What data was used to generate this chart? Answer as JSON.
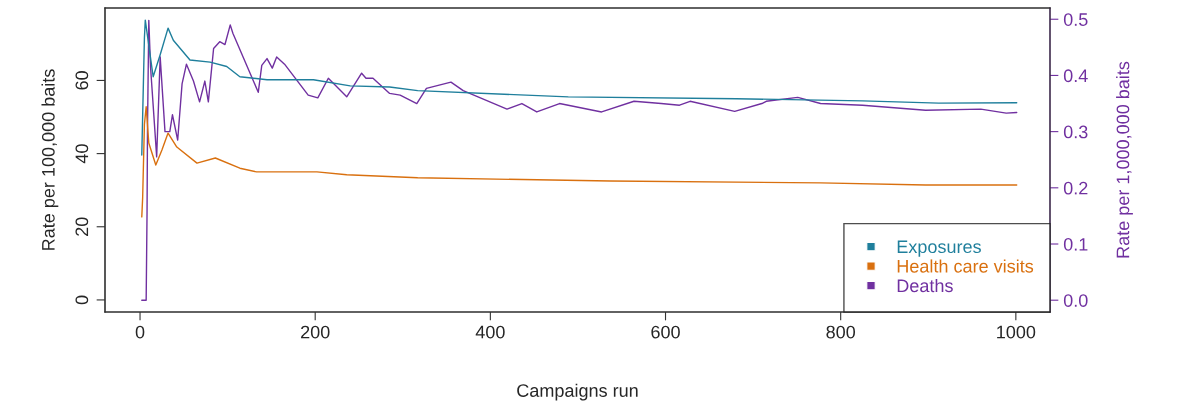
{
  "chart_data": {
    "type": "line",
    "xlabel": "Campaigns run",
    "ylabel": "Rate per 100,000 baits",
    "y2label": "Rate per 1,000,000 baits",
    "xlim": [
      -40,
      1039
    ],
    "xticks": [
      0,
      200,
      400,
      600,
      800,
      1000
    ],
    "ylim": [
      -3.3,
      79.8
    ],
    "yticks": [
      0,
      20,
      40,
      60
    ],
    "y2lim": [
      -0.021,
      0.52
    ],
    "y2ticks": [
      {
        "value": 0,
        "label": "0.0"
      },
      0.1,
      0.2,
      0.3,
      0.4,
      0.5
    ],
    "legend": "bottom right",
    "grid": false,
    "series": [
      {
        "name": "Exposures",
        "color": "#1f7f9c",
        "x": [
          2,
          4,
          5,
          6,
          15,
          23,
          32,
          38,
          57,
          80,
          99,
          114,
          145,
          198,
          240,
          285,
          317,
          489,
          681,
          825,
          912,
          1001
        ],
        "values": [
          39.6,
          61,
          71.6,
          76.5,
          61,
          67,
          74.3,
          71,
          65.6,
          65,
          63.8,
          61,
          60.2,
          60.2,
          58.5,
          58.2,
          57.2,
          55.5,
          55,
          54.4,
          53.8,
          53.9
        ]
      },
      {
        "name": "Health care visits",
        "color": "#d9700f",
        "x": [
          2,
          3,
          5,
          7,
          10,
          18,
          25,
          32,
          42,
          65,
          86,
          114,
          133,
          202,
          236,
          317,
          537,
          777,
          897,
          1001
        ],
        "values": [
          22.7,
          28,
          48,
          52.8,
          42.9,
          36.9,
          41,
          45.6,
          41.8,
          37.4,
          38.8,
          36,
          35,
          35,
          34.2,
          33.4,
          32.5,
          32,
          31.4,
          31.4
        ]
      },
      {
        "name": "Deaths",
        "color": "#7030a0",
        "axis": "y2",
        "x": [
          2,
          7,
          8,
          8.5,
          10,
          12,
          19,
          23,
          28.5,
          34,
          37,
          43,
          48,
          53,
          61,
          68,
          74,
          78,
          84,
          91,
          97,
          103,
          106,
          135,
          139,
          145,
          151,
          156,
          165,
          192,
          203,
          215,
          236,
          253,
          258,
          266,
          285,
          297,
          316,
          327,
          355,
          369,
          419,
          436,
          453,
          479,
          527,
          564,
          595,
          616,
          628,
          679,
          710,
          715,
          751,
          777,
          825,
          897,
          960,
          989,
          1001
        ],
        "values": [
          0,
          0,
          0.155,
          0.3,
          0.498,
          0.415,
          0.255,
          0.433,
          0.3,
          0.3,
          0.33,
          0.285,
          0.385,
          0.42,
          0.39,
          0.353,
          0.39,
          0.353,
          0.448,
          0.46,
          0.455,
          0.49,
          0.475,
          0.37,
          0.418,
          0.43,
          0.413,
          0.433,
          0.42,
          0.365,
          0.36,
          0.395,
          0.362,
          0.404,
          0.395,
          0.395,
          0.368,
          0.365,
          0.35,
          0.377,
          0.388,
          0.373,
          0.34,
          0.35,
          0.335,
          0.35,
          0.335,
          0.354,
          0.35,
          0.347,
          0.354,
          0.336,
          0.35,
          0.354,
          0.361,
          0.35,
          0.347,
          0.338,
          0.34,
          0.333,
          0.334
        ]
      }
    ]
  }
}
